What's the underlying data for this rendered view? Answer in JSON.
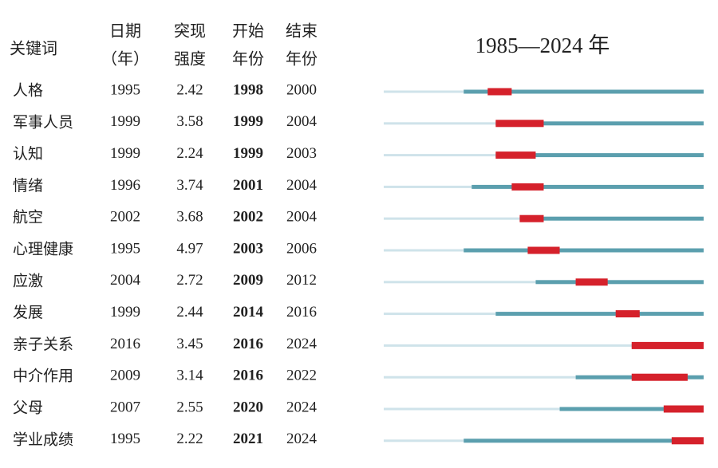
{
  "headers": {
    "keyword": [
      "关键词"
    ],
    "year": [
      "日期",
      "（年）"
    ],
    "strength": [
      "突现",
      "强度"
    ],
    "begin": [
      "开始",
      "年份"
    ],
    "end": [
      "结束",
      "年份"
    ]
  },
  "timeline": {
    "start": 1985,
    "separator": "—",
    "end": 2024,
    "unit": " 年"
  },
  "rows": [
    {
      "keyword": "人格",
      "year": 1995,
      "strength": 2.42,
      "begin": 1998,
      "end": 2000
    },
    {
      "keyword": "军事人员",
      "year": 1999,
      "strength": 3.58,
      "begin": 1999,
      "end": 2004
    },
    {
      "keyword": "认知",
      "year": 1999,
      "strength": 2.24,
      "begin": 1999,
      "end": 2003
    },
    {
      "keyword": "情绪",
      "year": 1996,
      "strength": 3.74,
      "begin": 2001,
      "end": 2004
    },
    {
      "keyword": "航空",
      "year": 2002,
      "strength": 3.68,
      "begin": 2002,
      "end": 2004
    },
    {
      "keyword": "心理健康",
      "year": 1995,
      "strength": 4.97,
      "begin": 2003,
      "end": 2006
    },
    {
      "keyword": "应激",
      "year": 2004,
      "strength": 2.72,
      "begin": 2009,
      "end": 2012
    },
    {
      "keyword": "发展",
      "year": 1999,
      "strength": 2.44,
      "begin": 2014,
      "end": 2016
    },
    {
      "keyword": "亲子关系",
      "year": 2016,
      "strength": 3.45,
      "begin": 2016,
      "end": 2024
    },
    {
      "keyword": "中介作用",
      "year": 2009,
      "strength": 3.14,
      "begin": 2016,
      "end": 2022
    },
    {
      "keyword": "父母",
      "year": 2007,
      "strength": 2.55,
      "begin": 2020,
      "end": 2024
    },
    {
      "keyword": "学业成绩",
      "year": 1995,
      "strength": 2.22,
      "begin": 2021,
      "end": 2024
    }
  ]
}
